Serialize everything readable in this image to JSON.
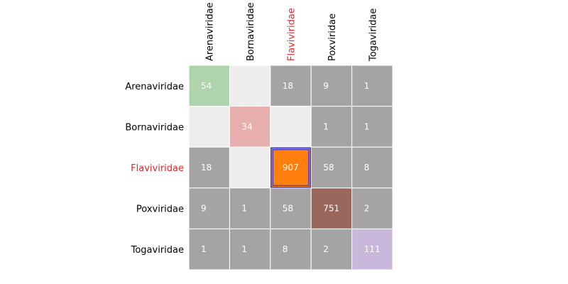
{
  "chart_data": {
    "type": "heatmap",
    "title": "",
    "xlabel": "",
    "ylabel": "",
    "categories": [
      "Arenaviridae",
      "Bornaviridae",
      "Flaviviridae",
      "Poxviridae",
      "Togaviridae"
    ],
    "highlighted_category": "Flaviviridae",
    "highlighted_cell": [
      "Flaviviridae",
      "Flaviviridae"
    ],
    "matrix": [
      [
        54,
        null,
        18,
        9,
        1
      ],
      [
        null,
        34,
        null,
        1,
        1
      ],
      [
        18,
        null,
        907,
        58,
        8
      ],
      [
        9,
        1,
        58,
        751,
        2
      ],
      [
        1,
        1,
        8,
        2,
        111
      ]
    ],
    "colors": {
      "diagonal": [
        "#add4ad",
        "#e6aeac",
        "#ff7f0e",
        "#9b665c",
        "#c9b7dc"
      ],
      "off_diagonal": "#a4a4a4",
      "empty": "#eeeeee",
      "highlight_text": "#e8252a",
      "normal_text": "#000000",
      "selection_border": "#3b3bd6"
    }
  }
}
